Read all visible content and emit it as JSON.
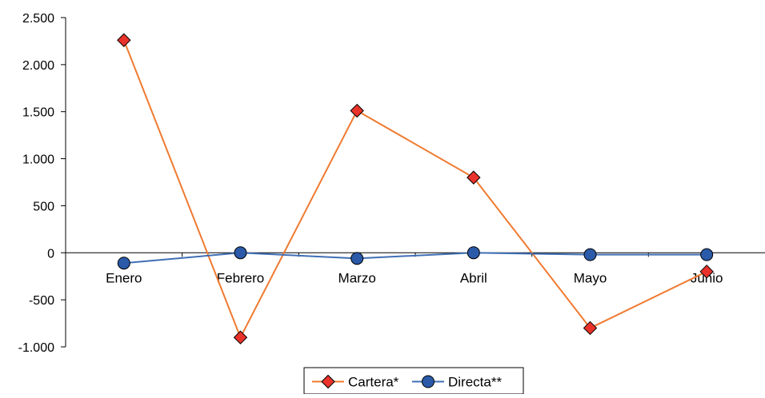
{
  "chart_data": {
    "type": "line",
    "categories": [
      "Enero",
      "Febrero",
      "Marzo",
      "Abril",
      "Mayo",
      "Junio"
    ],
    "series": [
      {
        "name": "Cartera*",
        "values": [
          2260,
          -900,
          1510,
          800,
          -800,
          -200
        ],
        "color": "#f07a30",
        "marker": "diamond",
        "marker_fill": "#e8322a"
      },
      {
        "name": "Directa**",
        "values": [
          -110,
          0,
          -60,
          0,
          -20,
          -20
        ],
        "color": "#3f6fb5",
        "marker": "circle",
        "marker_fill": "#2a5aa8"
      }
    ],
    "yticks": [
      2500,
      2000,
      1500,
      1000,
      500,
      0,
      -500,
      -1000
    ],
    "ytick_labels": [
      "2.500",
      "2.000",
      "1.500",
      "1.000",
      "500",
      "0",
      "-500",
      "-1.000"
    ],
    "ylim": [
      -1000,
      2500
    ],
    "grid": false,
    "legend": "bottom-center",
    "title": "",
    "xlabel": "",
    "ylabel": ""
  }
}
